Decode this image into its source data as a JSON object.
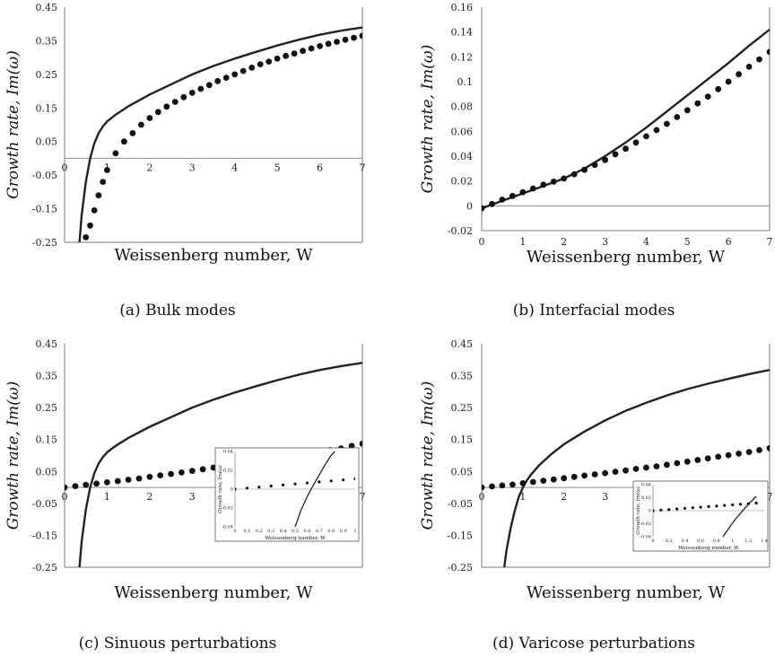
{
  "chart_data": [
    {
      "type": "line",
      "caption": "(a) Bulk modes",
      "xlabel": "Weissenberg number, W",
      "ylabel": "Growth rate, Im(ω)",
      "xlim": [
        0,
        7
      ],
      "ylim": [
        -0.25,
        0.45
      ],
      "xticks": [
        0,
        1,
        2,
        3,
        4,
        5,
        6,
        7
      ],
      "yticks": [
        -0.25,
        -0.15,
        -0.05,
        0.05,
        0.15,
        0.25,
        0.35,
        0.45
      ],
      "ytick_labels": [
        "-0.25",
        "-0.15",
        "-0.05",
        "0.05",
        "0.15",
        "0.25",
        "0.35",
        "0.45"
      ],
      "xaxis_at_y0": true,
      "series": [
        {
          "style": "line",
          "x": [
            0.35,
            0.4,
            0.5,
            0.6,
            0.7,
            0.8,
            0.9,
            1.0,
            1.2,
            1.5,
            2.0,
            2.5,
            3.0,
            3.5,
            4.0,
            4.5,
            5.0,
            5.5,
            6.0,
            6.5,
            7.0
          ],
          "y": [
            -0.25,
            -0.17,
            -0.07,
            0.0,
            0.045,
            0.075,
            0.095,
            0.11,
            0.13,
            0.155,
            0.19,
            0.22,
            0.25,
            0.275,
            0.297,
            0.317,
            0.336,
            0.353,
            0.368,
            0.38,
            0.39
          ]
        },
        {
          "style": "dots",
          "x": [
            0.5,
            0.6,
            0.7,
            0.8,
            0.9,
            1.0,
            1.2,
            1.4,
            1.6,
            1.8,
            2.0,
            2.2,
            2.4,
            2.6,
            2.8,
            3.0,
            3.2,
            3.4,
            3.6,
            3.8,
            4.0,
            4.2,
            4.4,
            4.6,
            4.8,
            5.0,
            5.2,
            5.4,
            5.6,
            5.8,
            6.0,
            6.2,
            6.4,
            6.6,
            6.8,
            7.0
          ],
          "y": [
            -0.235,
            -0.2,
            -0.155,
            -0.11,
            -0.07,
            -0.035,
            0.015,
            0.05,
            0.075,
            0.1,
            0.12,
            0.138,
            0.154,
            0.168,
            0.182,
            0.195,
            0.207,
            0.218,
            0.23,
            0.24,
            0.25,
            0.26,
            0.27,
            0.28,
            0.288,
            0.297,
            0.305,
            0.312,
            0.32,
            0.327,
            0.334,
            0.341,
            0.347,
            0.353,
            0.359,
            0.365
          ]
        }
      ]
    },
    {
      "type": "line",
      "caption": "(b) Interfacial modes",
      "xlabel": "Weissenberg number, W",
      "ylabel": "Growth rate, Im(ω)",
      "xlim": [
        0,
        7
      ],
      "ylim": [
        -0.02,
        0.16
      ],
      "xticks": [
        0,
        1,
        2,
        3,
        4,
        5,
        6,
        7
      ],
      "yticks": [
        -0.02,
        0,
        0.02,
        0.04,
        0.06,
        0.08,
        0.1,
        0.12,
        0.14,
        0.16
      ],
      "ytick_labels": [
        "-0.02",
        "0",
        "0.02",
        "0.04",
        "0.06",
        "0.08",
        "0.1",
        "0.12",
        "0.14",
        "0.16"
      ],
      "xaxis_at_y0": false,
      "series": [
        {
          "style": "line",
          "x": [
            0,
            0.5,
            1,
            1.5,
            2,
            2.5,
            3,
            3.5,
            4,
            4.5,
            5,
            5.5,
            6,
            6.5,
            7
          ],
          "y": [
            -0.002,
            0.004,
            0.01,
            0.016,
            0.022,
            0.03,
            0.04,
            0.051,
            0.063,
            0.076,
            0.089,
            0.102,
            0.115,
            0.129,
            0.142
          ]
        },
        {
          "style": "dots",
          "x": [
            0,
            0.25,
            0.5,
            0.75,
            1.0,
            1.25,
            1.5,
            1.75,
            2.0,
            2.25,
            2.5,
            2.75,
            3.0,
            3.25,
            3.5,
            3.75,
            4.0,
            4.25,
            4.5,
            4.75,
            5.0,
            5.25,
            5.5,
            5.75,
            6.0,
            6.25,
            6.5,
            6.75,
            7.0
          ],
          "y": [
            -0.002,
            0.0015,
            0.005,
            0.008,
            0.011,
            0.014,
            0.017,
            0.0195,
            0.022,
            0.0255,
            0.029,
            0.033,
            0.037,
            0.0415,
            0.046,
            0.051,
            0.056,
            0.061,
            0.066,
            0.0715,
            0.077,
            0.0825,
            0.088,
            0.094,
            0.1,
            0.106,
            0.112,
            0.118,
            0.124
          ]
        }
      ]
    },
    {
      "type": "line",
      "caption": "(c) Sinuous perturbations",
      "xlabel": "Weissenberg number, W",
      "ylabel": "Growth rate, Im(ω)",
      "xlim": [
        0,
        7
      ],
      "ylim": [
        -0.25,
        0.45
      ],
      "xticks": [
        0,
        1,
        2,
        3,
        4,
        5,
        6,
        7
      ],
      "yticks": [
        -0.25,
        -0.15,
        -0.05,
        0.05,
        0.15,
        0.25,
        0.35,
        0.45
      ],
      "ytick_labels": [
        "-0.25",
        "-0.15",
        "-0.05",
        "0.05",
        "0.15",
        "0.25",
        "0.35",
        "0.45"
      ],
      "xaxis_at_y0": true,
      "series": [
        {
          "style": "line",
          "x": [
            0.35,
            0.4,
            0.5,
            0.6,
            0.7,
            0.8,
            0.9,
            1.0,
            1.2,
            1.5,
            2.0,
            2.5,
            3.0,
            3.5,
            4.0,
            4.5,
            5.0,
            5.5,
            6.0,
            6.5,
            7.0
          ],
          "y": [
            -0.25,
            -0.17,
            -0.07,
            0.0,
            0.045,
            0.075,
            0.095,
            0.11,
            0.13,
            0.155,
            0.19,
            0.22,
            0.25,
            0.275,
            0.297,
            0.317,
            0.336,
            0.353,
            0.368,
            0.38,
            0.39
          ]
        },
        {
          "style": "dots",
          "x": [
            0,
            0.25,
            0.5,
            0.75,
            1.0,
            1.25,
            1.5,
            1.75,
            2.0,
            2.25,
            2.5,
            2.75,
            3.0,
            3.25,
            3.5,
            3.75,
            4.0,
            4.25,
            4.5,
            4.75,
            5.0,
            5.25,
            5.5,
            5.75,
            6.0,
            6.25,
            6.5,
            6.75,
            7.0
          ],
          "y": [
            0.0,
            0.004,
            0.008,
            0.012,
            0.016,
            0.02,
            0.024,
            0.028,
            0.033,
            0.038,
            0.042,
            0.047,
            0.052,
            0.057,
            0.062,
            0.067,
            0.072,
            0.077,
            0.082,
            0.087,
            0.092,
            0.097,
            0.102,
            0.107,
            0.112,
            0.117,
            0.122,
            0.13,
            0.137
          ]
        }
      ],
      "inset": {
        "xlabel": "Weissenberg number, W",
        "ylabel": "Growth rate, Im(ω)",
        "xlim": [
          0,
          1
        ],
        "ylim": [
          -0.04,
          0.04
        ],
        "xticks": [
          0,
          0.1,
          0.2,
          0.3,
          0.4,
          0.5,
          0.6,
          0.7,
          0.8,
          0.9,
          1
        ],
        "xtick_labels": [
          "0",
          "0.1",
          "0.2",
          "0.3",
          "0.4",
          "0.5",
          "0.6",
          "0.7",
          "0.8",
          "0.9",
          "1"
        ],
        "yticks": [
          -0.04,
          -0.02,
          0,
          0.02,
          0.04
        ],
        "ytick_labels": [
          "-0.04",
          "-0.02",
          "0",
          "0.02",
          "0.04"
        ],
        "series": [
          {
            "style": "line",
            "x": [
              0.5,
              0.55,
              0.6,
              0.65,
              0.7,
              0.75,
              0.8,
              0.83
            ],
            "y": [
              -0.04,
              -0.022,
              -0.008,
              0.004,
              0.015,
              0.026,
              0.036,
              0.04
            ]
          },
          {
            "style": "dots",
            "x": [
              0,
              0.1,
              0.2,
              0.3,
              0.4,
              0.5,
              0.6,
              0.7,
              0.8,
              0.9,
              1.0
            ],
            "y": [
              0,
              0.0011,
              0.0022,
              0.0033,
              0.0044,
              0.0055,
              0.0066,
              0.0077,
              0.0088,
              0.0099,
              0.011
            ]
          }
        ]
      }
    },
    {
      "type": "line",
      "caption": "(d) Varicose perturbations",
      "xlabel": "Weissenberg number, W",
      "ylabel": "Growth rate, Im(ω)",
      "xlim": [
        0,
        7
      ],
      "ylim": [
        -0.25,
        0.45
      ],
      "xticks": [
        0,
        1,
        2,
        3,
        4,
        5,
        6,
        7
      ],
      "yticks": [
        -0.25,
        -0.15,
        -0.05,
        0.05,
        0.15,
        0.25,
        0.35,
        0.45
      ],
      "ytick_labels": [
        "-0.25",
        "-0.15",
        "-0.05",
        "0.05",
        "0.15",
        "0.25",
        "0.35",
        "0.45"
      ],
      "xaxis_at_y0": true,
      "series": [
        {
          "style": "line",
          "x": [
            0.55,
            0.6,
            0.7,
            0.8,
            0.9,
            1.0,
            1.1,
            1.2,
            1.4,
            1.7,
            2.0,
            2.5,
            3.0,
            3.5,
            4.0,
            4.5,
            5.0,
            5.5,
            6.0,
            6.5,
            7.0
          ],
          "y": [
            -0.25,
            -0.2,
            -0.13,
            -0.075,
            -0.03,
            0.0,
            0.022,
            0.04,
            0.07,
            0.105,
            0.135,
            0.175,
            0.21,
            0.24,
            0.265,
            0.288,
            0.308,
            0.325,
            0.34,
            0.355,
            0.368
          ]
        },
        {
          "style": "dots",
          "x": [
            0,
            0.25,
            0.5,
            0.75,
            1.0,
            1.25,
            1.5,
            1.75,
            2.0,
            2.25,
            2.5,
            2.75,
            3.0,
            3.25,
            3.5,
            3.75,
            4.0,
            4.25,
            4.5,
            4.75,
            5.0,
            5.25,
            5.5,
            5.75,
            6.0,
            6.25,
            6.5,
            6.75,
            7.0
          ],
          "y": [
            0.0,
            0.003,
            0.006,
            0.009,
            0.013,
            0.017,
            0.021,
            0.025,
            0.029,
            0.033,
            0.037,
            0.041,
            0.045,
            0.049,
            0.053,
            0.058,
            0.062,
            0.066,
            0.071,
            0.076,
            0.081,
            0.086,
            0.091,
            0.096,
            0.101,
            0.106,
            0.111,
            0.117,
            0.123
          ]
        }
      ],
      "inset": {
        "xlabel": "Weissenberg number, W",
        "ylabel": "Growth rate, Im(ω)",
        "xlim": [
          0,
          1.4
        ],
        "ylim": [
          -0.04,
          0.04
        ],
        "xticks": [
          0,
          0.2,
          0.4,
          0.6,
          0.8,
          1,
          1.2,
          1.4
        ],
        "xtick_labels": [
          "0",
          "0.2",
          "0.4",
          "0.6",
          "0.8",
          "1",
          "1.2",
          "1.4"
        ],
        "yticks": [
          -0.04,
          -0.02,
          0,
          0.02,
          0.04
        ],
        "ytick_labels": [
          "-0.04",
          "-0.02",
          "0",
          "0.02",
          "0.04"
        ],
        "series": [
          {
            "style": "line",
            "x": [
              0.88,
              0.95,
              1.0,
              1.05,
              1.1,
              1.15,
              1.2,
              1.25,
              1.3
            ],
            "y": [
              -0.04,
              -0.028,
              -0.019,
              -0.011,
              -0.004,
              0.003,
              0.01,
              0.016,
              0.022
            ]
          },
          {
            "style": "dots",
            "x": [
              0,
              0.1,
              0.2,
              0.3,
              0.4,
              0.5,
              0.6,
              0.7,
              0.8,
              0.9,
              1.0,
              1.1,
              1.2,
              1.3
            ],
            "y": [
              0,
              0.0009,
              0.0018,
              0.0027,
              0.0036,
              0.0045,
              0.0054,
              0.0063,
              0.0072,
              0.0081,
              0.009,
              0.0099,
              0.0108,
              0.0117
            ]
          }
        ]
      }
    }
  ]
}
